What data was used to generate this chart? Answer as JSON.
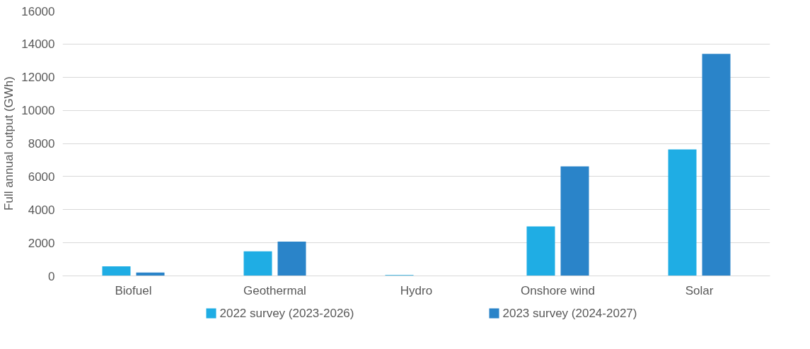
{
  "chart_data": {
    "type": "bar",
    "ylabel": "Full annual output (GWh)",
    "categories": [
      "Biofuel",
      "Geothermal",
      "Hydro",
      "Onshore wind",
      "Solar"
    ],
    "series": [
      {
        "name": "2022 survey (2023-2026)",
        "color": "#1fade4",
        "values": [
          580,
          1480,
          50,
          2990,
          7640
        ]
      },
      {
        "name": "2023 survey (2024-2027)",
        "color": "#2a84c9",
        "values": [
          200,
          2070,
          0,
          6610,
          13410
        ]
      }
    ],
    "ylim": [
      0,
      16000
    ],
    "yticks": [
      0,
      2000,
      4000,
      6000,
      8000,
      10000,
      12000,
      14000,
      16000
    ],
    "grid": "y",
    "legend": "bottom"
  }
}
